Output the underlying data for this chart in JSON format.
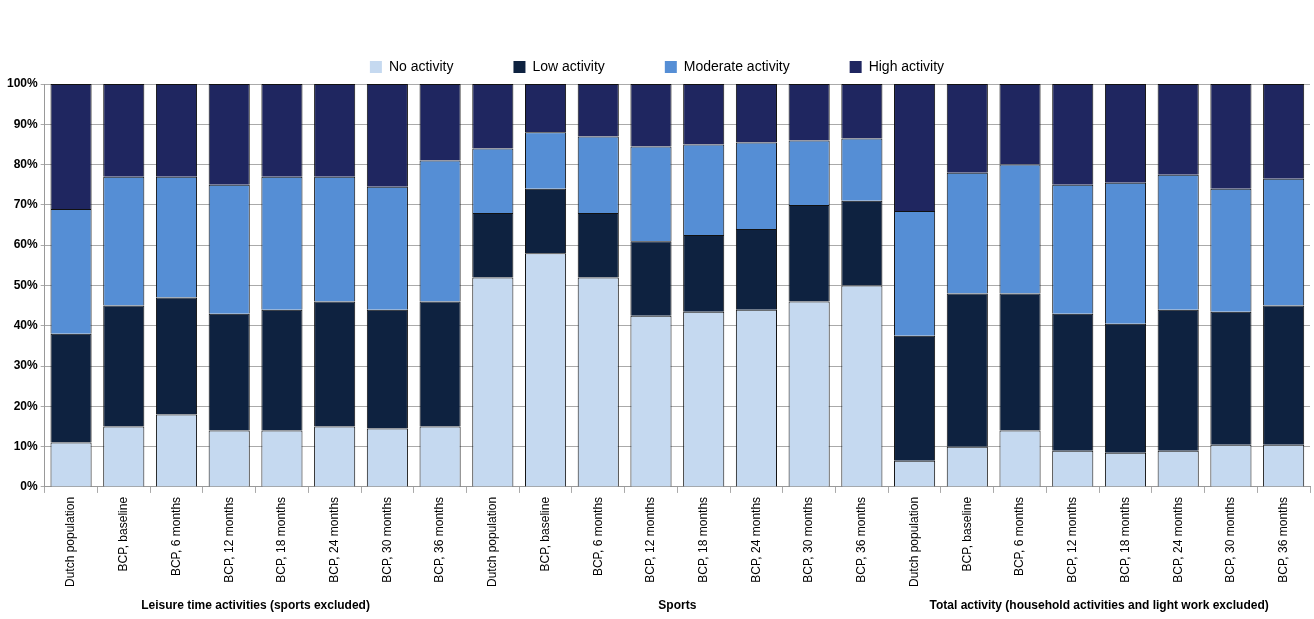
{
  "chart_data": {
    "type": "bar",
    "stacked": true,
    "legend": "top",
    "grid": "y",
    "categories": [
      "Dutch population",
      "BCP, baseline",
      "BCP, 6 months",
      "BCP, 12 months",
      "BCP, 18 months",
      "BCP, 24 months",
      "BCP, 30 months",
      "BCP, 36 months",
      "Dutch population",
      "BCP, baseline",
      "BCP, 6 months",
      "BCP, 12 months",
      "BCP, 18 months",
      "BCP, 24 months",
      "BCP, 30 months",
      "BCP, 36 months",
      "Dutch population",
      "BCP, baseline",
      "BCP, 6 months",
      "BCP, 12 months",
      "BCP, 18 months",
      "BCP, 24 months",
      "BCP, 30 months",
      "BCP, 36 months"
    ],
    "series": [
      {
        "name": "No activity",
        "color": "#c5d9f0",
        "values": [
          11,
          15,
          18,
          14,
          14,
          15,
          14.5,
          15,
          52,
          58,
          52,
          42.5,
          43.5,
          44,
          46,
          50,
          6.5,
          10,
          14,
          9,
          8.5,
          9,
          10.5,
          10.5
        ]
      },
      {
        "name": "Low activity",
        "color": "#0e2240",
        "values": [
          27,
          30,
          29,
          29,
          30,
          31,
          29.5,
          31,
          16,
          16,
          16,
          18.5,
          19,
          20,
          24,
          21,
          31,
          38,
          34,
          34,
          32,
          35,
          33,
          34.5
        ]
      },
      {
        "name": "Moderate activity",
        "color": "#558ed5",
        "values": [
          31,
          32,
          30,
          32,
          33,
          31,
          30.5,
          35,
          16,
          14,
          19,
          23.5,
          22.5,
          21.5,
          16,
          15.5,
          31,
          30,
          32,
          32,
          35,
          33.5,
          30.5,
          31.5
        ]
      },
      {
        "name": "High activity",
        "color": "#1f2660",
        "values": [
          31,
          23,
          23,
          25,
          23,
          23,
          25.5,
          19,
          16,
          12,
          13,
          15.5,
          15,
          14.5,
          14,
          13.5,
          31.5,
          22,
          20,
          25,
          24.5,
          22.5,
          26,
          23.5
        ]
      }
    ],
    "ylim": [
      0,
      100
    ],
    "yticks": [
      {
        "value": 0,
        "label": "0%"
      },
      {
        "value": 10,
        "label": "10%"
      },
      {
        "value": 20,
        "label": "20%"
      },
      {
        "value": 30,
        "label": "30%"
      },
      {
        "value": 40,
        "label": "40%"
      },
      {
        "value": 50,
        "label": "50%"
      },
      {
        "value": 60,
        "label": "60%"
      },
      {
        "value": 70,
        "label": "70%"
      },
      {
        "value": 80,
        "label": "80%"
      },
      {
        "value": 90,
        "label": "90%"
      },
      {
        "value": 100,
        "label": "100%"
      }
    ],
    "annotations": [
      "Leisure time activities (sports excluded)",
      "Sports",
      "Total activity (household activities and light work excluded)"
    ]
  }
}
